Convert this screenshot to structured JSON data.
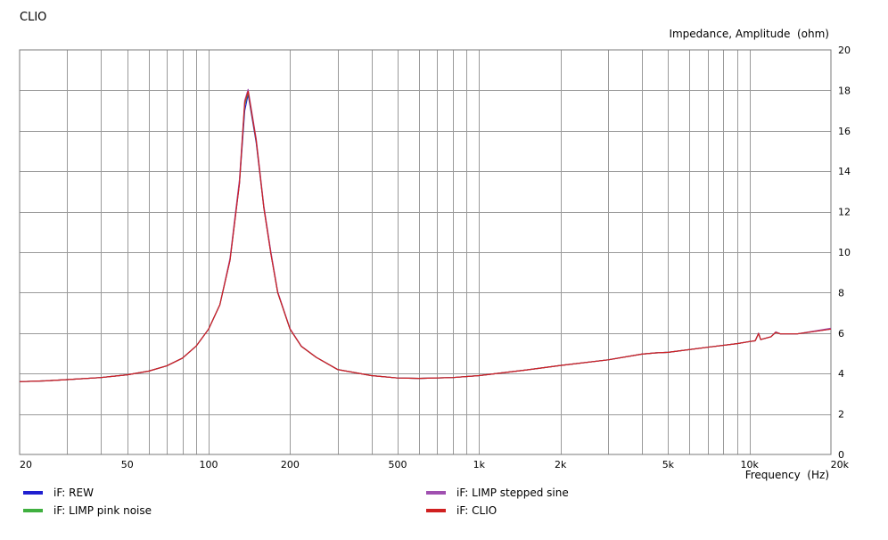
{
  "chart_data": {
    "type": "line",
    "title": "CLIO",
    "ylabel": "Impedance, Amplitude  (ohm)",
    "xlabel": "Frequency  (Hz)",
    "xscale": "log",
    "xlim": [
      20,
      20000
    ],
    "ylim": [
      0,
      20
    ],
    "grid": true,
    "legend_placement": "bottom",
    "x_ticks": [
      {
        "value": 20,
        "label": "20"
      },
      {
        "value": 50,
        "label": "50"
      },
      {
        "value": 100,
        "label": "100"
      },
      {
        "value": 200,
        "label": "200"
      },
      {
        "value": 500,
        "label": "500"
      },
      {
        "value": 1000,
        "label": "1k"
      },
      {
        "value": 2000,
        "label": "2k"
      },
      {
        "value": 5000,
        "label": "5k"
      },
      {
        "value": 10000,
        "label": "10k"
      },
      {
        "value": 20000,
        "label": "20k"
      }
    ],
    "y_ticks": [
      {
        "value": 0,
        "label": "0"
      },
      {
        "value": 2,
        "label": "2"
      },
      {
        "value": 4,
        "label": "4"
      },
      {
        "value": 6,
        "label": "6"
      },
      {
        "value": 8,
        "label": "8"
      },
      {
        "value": 10,
        "label": "10"
      },
      {
        "value": 12,
        "label": "12"
      },
      {
        "value": 14,
        "label": "14"
      },
      {
        "value": 16,
        "label": "16"
      },
      {
        "value": 18,
        "label": "18"
      },
      {
        "value": 20,
        "label": "20"
      }
    ],
    "x": [
      20,
      25,
      30,
      40,
      50,
      60,
      70,
      80,
      90,
      100,
      110,
      120,
      130,
      136,
      140,
      150,
      160,
      170,
      180,
      200,
      220,
      250,
      300,
      400,
      500,
      600,
      800,
      1000,
      1500,
      2000,
      3000,
      4000,
      4500,
      5000,
      7000,
      9000,
      10000,
      10500,
      10800,
      11000,
      12000,
      12500,
      13000,
      15000,
      20000
    ],
    "series": [
      {
        "name": "iF: REW",
        "color": "#2020d0",
        "values": [
          3.6,
          3.64,
          3.7,
          3.8,
          3.94,
          4.12,
          4.38,
          4.76,
          5.36,
          6.2,
          7.4,
          9.6,
          13.4,
          17.0,
          17.8,
          15.4,
          12.2,
          9.9,
          8.0,
          6.2,
          5.35,
          4.8,
          4.2,
          3.9,
          3.78,
          3.76,
          3.8,
          3.9,
          4.18,
          4.4,
          4.68,
          4.96,
          5.02,
          5.05,
          5.3,
          5.48,
          5.58,
          5.62,
          5.98,
          5.68,
          5.82,
          6.04,
          5.96,
          5.96,
          6.2
        ]
      },
      {
        "name": "iF: LIMP pink noise",
        "color": "#40b040",
        "values": [
          3.6,
          3.64,
          3.7,
          3.8,
          3.94,
          4.12,
          4.38,
          4.76,
          5.36,
          6.2,
          7.4,
          9.65,
          13.5,
          17.3,
          17.9,
          15.5,
          12.25,
          9.95,
          8.0,
          6.2,
          5.35,
          4.8,
          4.2,
          3.9,
          3.78,
          3.76,
          3.8,
          3.9,
          4.18,
          4.4,
          4.68,
          4.96,
          5.02,
          5.05,
          5.3,
          5.48,
          5.58,
          5.62,
          5.98,
          5.68,
          5.82,
          6.04,
          5.96,
          5.96,
          6.22
        ]
      },
      {
        "name": "iF: LIMP stepped sine",
        "color": "#a050b0",
        "values": [
          3.6,
          3.64,
          3.7,
          3.8,
          3.94,
          4.12,
          4.38,
          4.76,
          5.36,
          6.2,
          7.4,
          9.7,
          13.6,
          17.5,
          18.05,
          15.6,
          12.3,
          10.0,
          8.05,
          6.22,
          5.36,
          4.8,
          4.2,
          3.9,
          3.78,
          3.76,
          3.8,
          3.9,
          4.18,
          4.4,
          4.68,
          4.96,
          5.02,
          5.05,
          5.3,
          5.48,
          5.58,
          5.62,
          6.0,
          5.68,
          5.82,
          6.06,
          5.96,
          5.96,
          6.24
        ]
      },
      {
        "name": "iF: CLIO",
        "color": "#d02020",
        "values": [
          3.6,
          3.64,
          3.7,
          3.8,
          3.94,
          4.12,
          4.38,
          4.76,
          5.36,
          6.2,
          7.4,
          9.6,
          13.4,
          17.4,
          17.95,
          15.5,
          12.2,
          9.9,
          8.0,
          6.2,
          5.35,
          4.8,
          4.2,
          3.9,
          3.78,
          3.76,
          3.8,
          3.9,
          4.18,
          4.4,
          4.68,
          4.96,
          5.02,
          5.05,
          5.3,
          5.48,
          5.58,
          5.62,
          5.98,
          5.68,
          5.82,
          6.04,
          5.96,
          5.96,
          6.2
        ]
      }
    ]
  }
}
